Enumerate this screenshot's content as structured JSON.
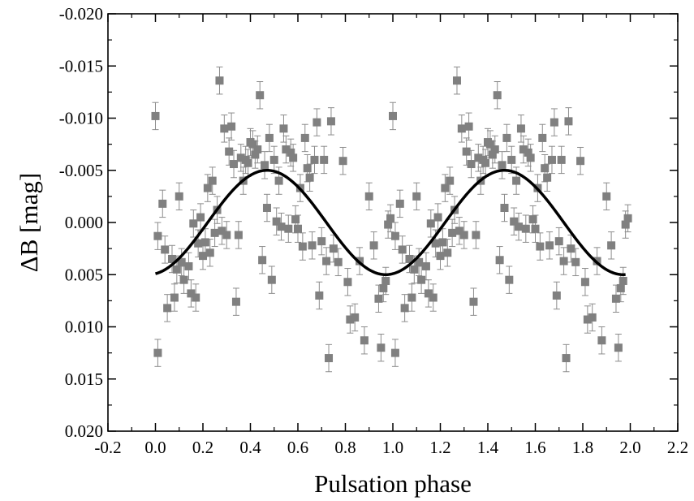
{
  "chart_data": {
    "type": "scatter",
    "xlabel": "Pulsation phase",
    "ylabel": "ΔB [mag]",
    "xlim": [
      -0.2,
      2.2
    ],
    "ylim": [
      -0.02,
      0.02
    ],
    "y_inverted": true,
    "x_ticks": [
      "-0.2",
      "0.0",
      "0.2",
      "0.4",
      "0.6",
      "0.8",
      "1.0",
      "1.2",
      "1.4",
      "1.6",
      "1.8",
      "2.0",
      "2.2"
    ],
    "y_ticks": [
      "-0.020",
      "-0.015",
      "-0.010",
      "-0.005",
      "0.000",
      "0.005",
      "0.010",
      "0.015",
      "0.020"
    ],
    "grid": false,
    "legend": "none",
    "colors": {
      "points": "#808080",
      "error_bars": "#8c8c8c",
      "fit_curve": "#000000"
    },
    "series": [
      {
        "type": "scatter",
        "marker": "square",
        "error_bar_mag": 0.0013,
        "x": [
          0.0,
          0.01,
          0.01,
          0.03,
          0.04,
          0.05,
          0.07,
          0.08,
          0.09,
          0.1,
          0.11,
          0.12,
          0.14,
          0.15,
          0.16,
          0.17,
          0.18,
          0.19,
          0.2,
          0.21,
          0.22,
          0.23,
          0.24,
          0.25,
          0.26,
          0.27,
          0.28,
          0.29,
          0.3,
          0.31,
          0.32,
          0.33,
          0.34,
          0.35,
          0.36,
          0.37,
          0.38,
          0.39,
          0.4,
          0.41,
          0.42,
          0.43,
          0.44,
          0.45,
          0.46,
          0.47,
          0.48,
          0.49,
          0.5,
          0.51,
          0.52,
          0.53,
          0.54,
          0.55,
          0.56,
          0.57,
          0.58,
          0.59,
          0.6,
          0.61,
          0.62,
          0.63,
          0.64,
          0.65,
          0.66,
          0.67,
          0.68,
          0.69,
          0.7,
          0.71,
          0.72,
          0.73,
          0.74,
          0.75,
          0.77,
          0.79,
          0.81,
          0.82,
          0.84,
          0.86,
          0.88,
          0.9,
          0.92,
          0.94,
          0.95,
          0.96,
          0.97,
          0.98,
          0.99
        ],
        "y": [
          -0.0102,
          0.0125,
          0.0013,
          -0.0018,
          0.0026,
          0.0082,
          0.0035,
          0.0072,
          0.0045,
          -0.0025,
          0.0038,
          0.0055,
          0.0042,
          0.0068,
          0.0001,
          0.0072,
          0.002,
          -0.0005,
          0.0032,
          0.0019,
          -0.0033,
          0.0029,
          -0.004,
          0.001,
          -0.0012,
          -0.0136,
          0.0008,
          -0.009,
          0.0012,
          -0.0068,
          -0.0092,
          -0.0056,
          0.0076,
          0.0012,
          -0.0062,
          -0.004,
          -0.006,
          -0.0057,
          -0.0077,
          -0.0075,
          -0.0065,
          -0.007,
          -0.0122,
          0.0036,
          -0.0055,
          -0.0014,
          -0.0081,
          0.0055,
          -0.006,
          -0.0001,
          -0.004,
          0.0004,
          -0.009,
          -0.007,
          0.0006,
          -0.0067,
          -0.0062,
          -0.0003,
          0.0006,
          -0.0033,
          0.0023,
          -0.0081,
          -0.0052,
          -0.0043,
          0.0022,
          -0.006,
          -0.0096,
          0.007,
          0.0018,
          -0.006,
          0.0037,
          0.013,
          -0.0097,
          0.0025,
          0.0038,
          -0.0059,
          0.0057,
          0.0093,
          0.0091,
          0.0037,
          0.0113,
          -0.0025,
          0.0022,
          0.0073,
          0.012,
          0.0063,
          0.0056,
          0.0002,
          -0.0004
        ]
      },
      {
        "type": "line",
        "mean": 0.0,
        "amplitude": 0.005,
        "phase_of_maximum": 0.47,
        "x_range": [
          0.0,
          1.98
        ]
      }
    ]
  }
}
